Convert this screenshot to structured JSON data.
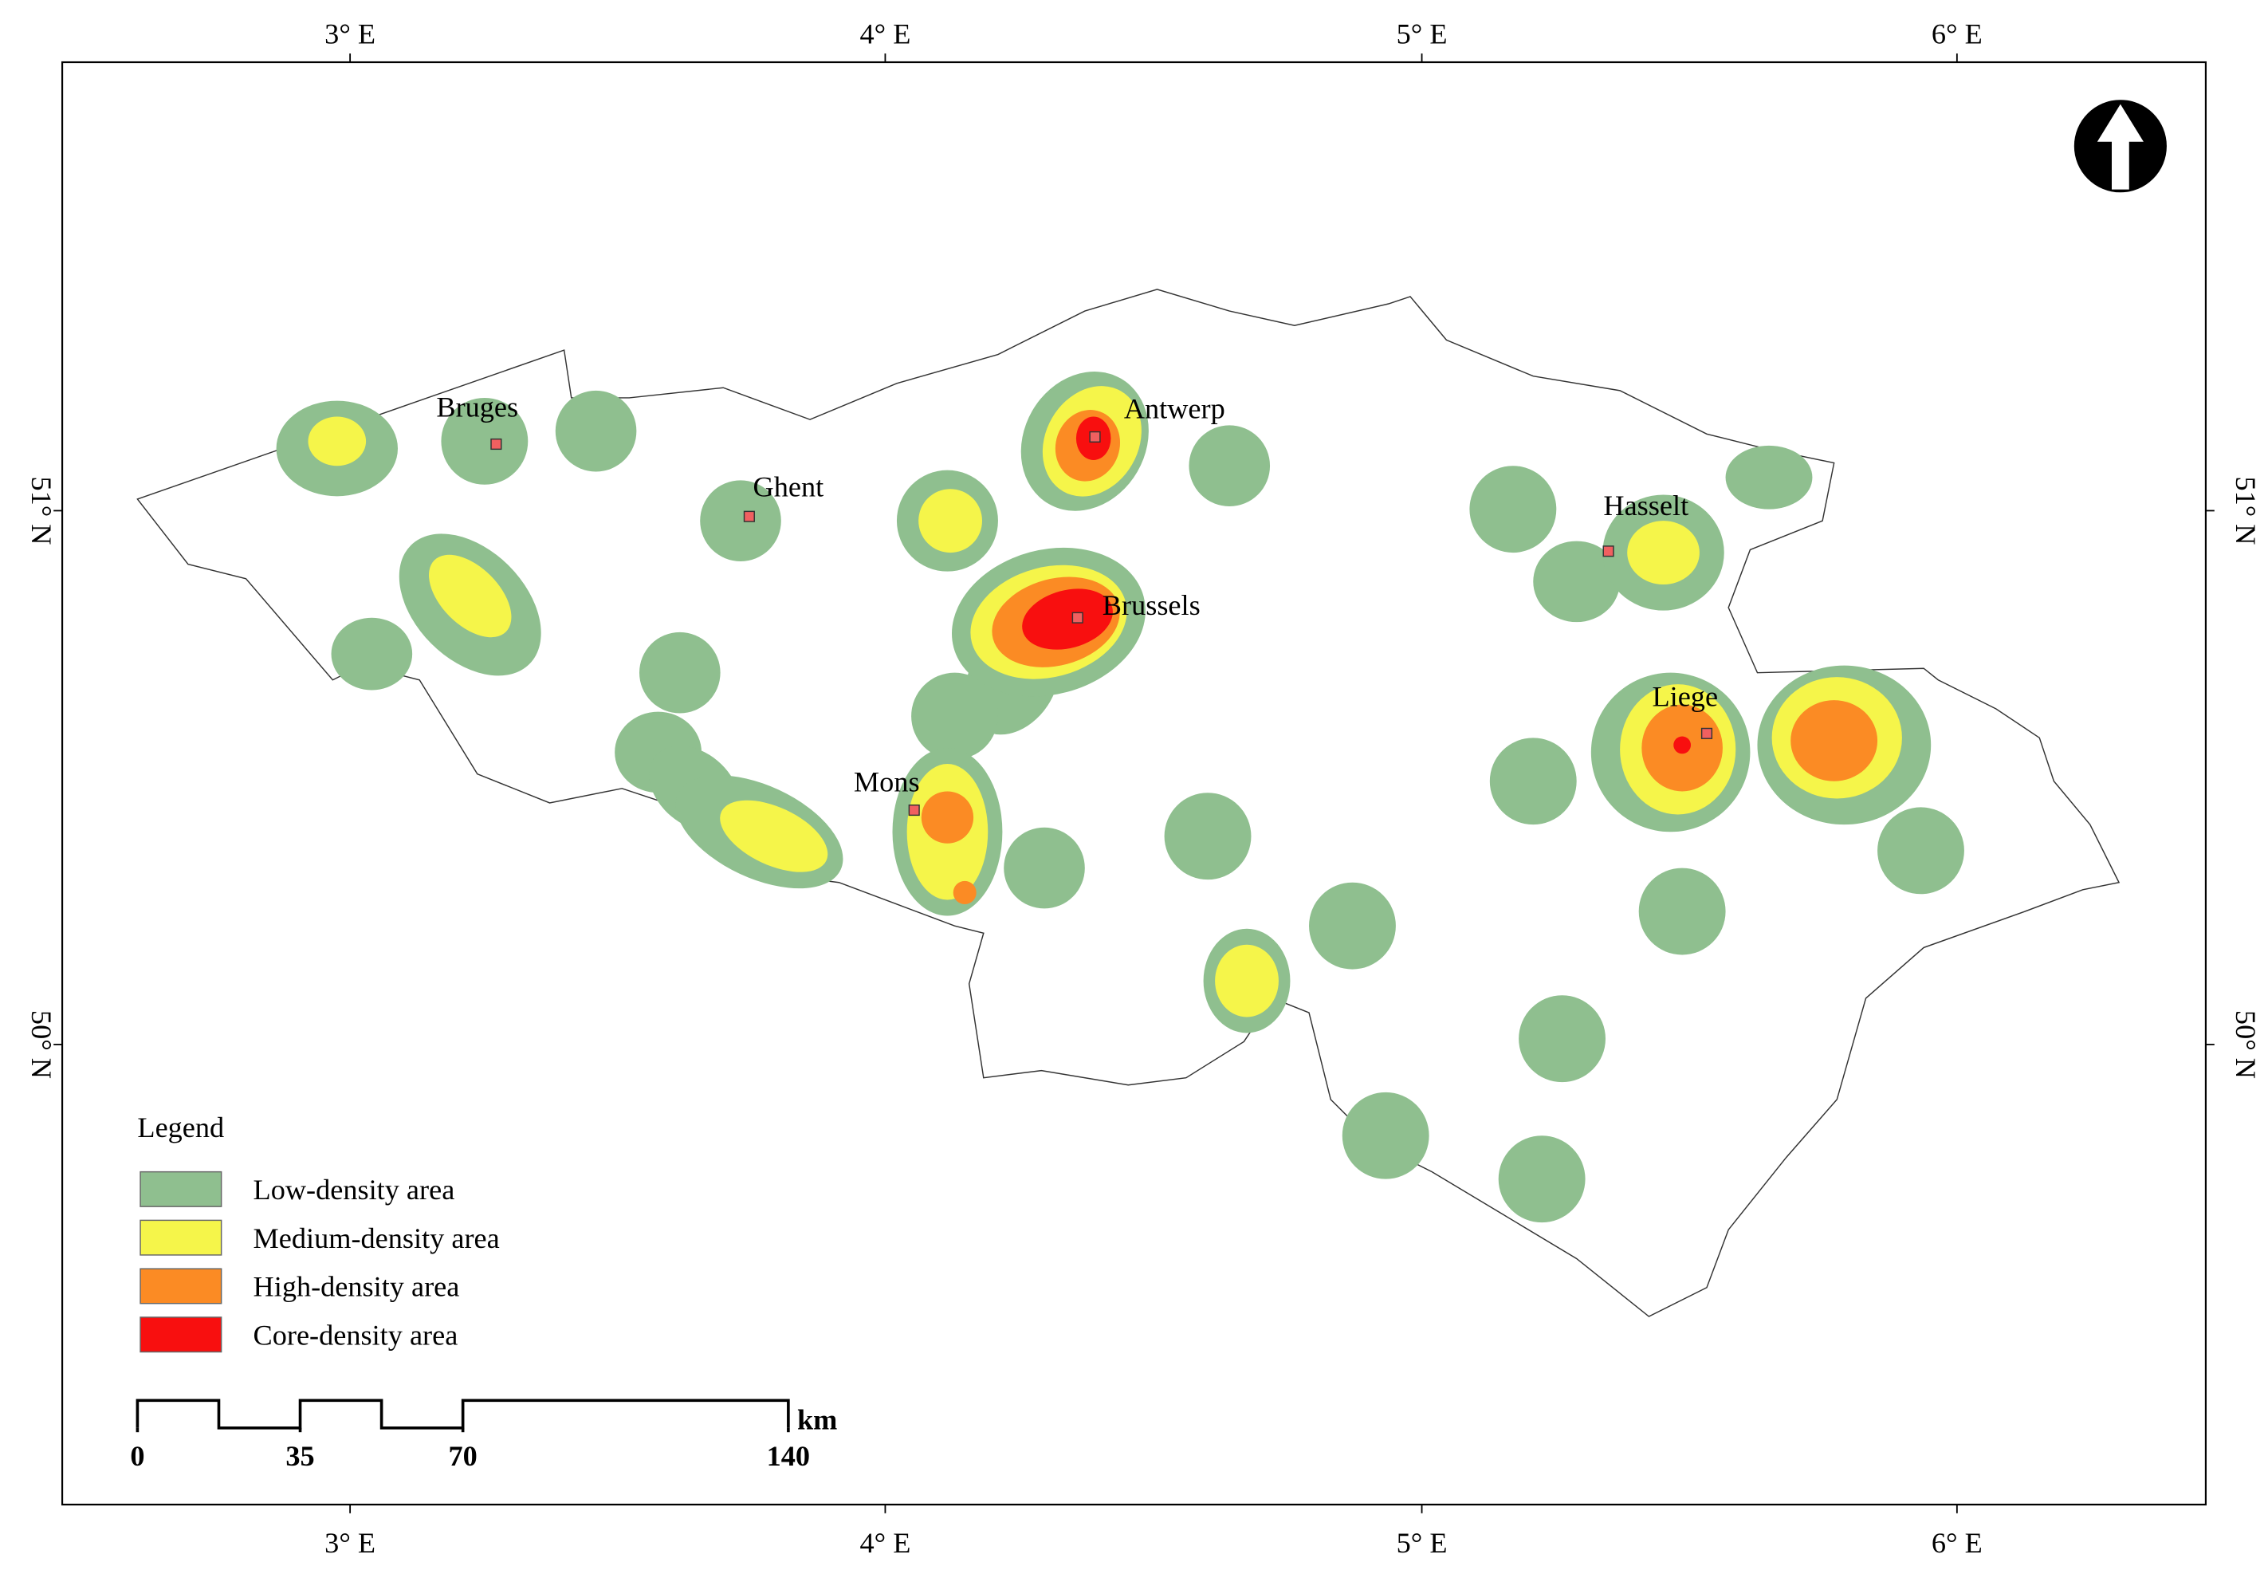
{
  "map": {
    "lon_labels": [
      "3° E",
      "4° E",
      "5° E",
      "6° E"
    ],
    "lat_labels": [
      "51° N",
      "50° N"
    ],
    "cities": [
      "Bruges",
      "Ghent",
      "Antwerp",
      "Brussels",
      "Hasselt",
      "Mons",
      "Liege"
    ],
    "legend": {
      "title": "Legend",
      "items": [
        {
          "label": "Low-density area",
          "color": "#8fbf8f"
        },
        {
          "label": "Medium-density area",
          "color": "#f5f54a"
        },
        {
          "label": "High-density area",
          "color": "#fb8b24"
        },
        {
          "label": "Core-density area",
          "color": "#f80f0f"
        }
      ]
    },
    "scale_bar": {
      "ticks": [
        0,
        35,
        70,
        140
      ],
      "unit": "km"
    }
  }
}
